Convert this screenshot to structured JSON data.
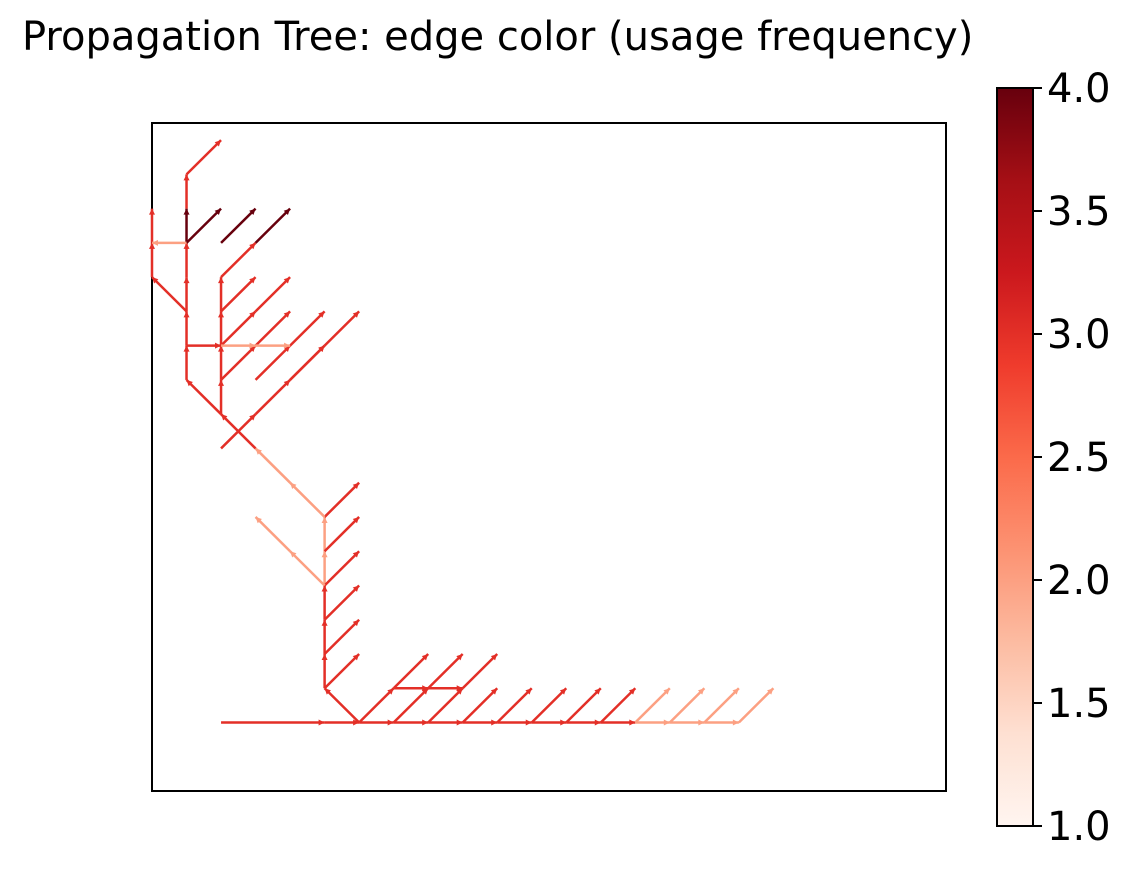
{
  "chart_data": {
    "type": "network",
    "title": "Propagation Tree: edge color (usage frequency)",
    "xlabel": "",
    "ylabel": "",
    "colormap": "Reds",
    "colorbar": {
      "min": 1.0,
      "max": 4.0,
      "ticks": [
        1.0,
        1.5,
        2.0,
        2.5,
        3.0,
        3.5,
        4.0
      ],
      "tick_labels": [
        "1.0",
        "1.5",
        "2.0",
        "2.5",
        "3.0",
        "3.5",
        "4.0"
      ],
      "placement": "right"
    },
    "axes": {
      "xticks": false,
      "yticks": false,
      "grid": false,
      "xlim": [
        -1,
        22
      ],
      "ylim": [
        -2,
        17.5
      ]
    },
    "edges": [
      [
        1,
        0,
        4,
        0,
        3
      ],
      [
        4,
        0,
        5,
        0,
        3
      ],
      [
        5,
        0,
        6,
        0,
        3
      ],
      [
        6,
        0,
        7,
        0,
        3
      ],
      [
        7,
        0,
        8,
        0,
        3
      ],
      [
        8,
        0,
        9,
        0,
        3
      ],
      [
        9,
        0,
        10,
        0,
        3
      ],
      [
        10,
        0,
        11,
        0,
        3
      ],
      [
        11,
        0,
        12,
        0,
        3
      ],
      [
        12,
        0,
        13,
        0,
        3
      ],
      [
        13,
        0,
        14,
        0,
        2
      ],
      [
        14,
        0,
        15,
        0,
        2
      ],
      [
        15,
        0,
        16,
        0,
        2
      ],
      [
        5,
        0,
        6,
        1,
        3
      ],
      [
        6,
        0,
        7,
        1,
        3
      ],
      [
        7,
        0,
        8,
        1,
        3
      ],
      [
        8,
        0,
        9,
        1,
        3
      ],
      [
        9,
        0,
        10,
        1,
        3
      ],
      [
        10,
        0,
        11,
        1,
        3
      ],
      [
        11,
        0,
        12,
        1,
        3
      ],
      [
        12,
        0,
        13,
        1,
        3
      ],
      [
        13,
        0,
        14,
        1,
        2
      ],
      [
        14,
        0,
        15,
        1,
        2
      ],
      [
        15,
        0,
        16,
        1,
        2
      ],
      [
        16,
        0,
        17,
        1,
        2
      ],
      [
        6,
        1,
        7,
        1,
        3
      ],
      [
        7,
        1,
        8,
        1,
        3
      ],
      [
        6,
        1,
        7,
        2,
        3
      ],
      [
        7,
        1,
        8,
        2,
        3
      ],
      [
        8,
        1,
        9,
        2,
        3
      ],
      [
        5,
        0,
        4,
        1,
        3
      ],
      [
        4,
        1,
        4,
        2,
        3
      ],
      [
        4,
        2,
        4,
        3,
        3
      ],
      [
        4,
        3,
        4,
        4,
        3
      ],
      [
        4,
        4,
        4,
        5,
        2
      ],
      [
        4,
        5,
        4,
        6,
        2
      ],
      [
        4,
        1,
        5,
        2,
        3
      ],
      [
        4,
        2,
        5,
        3,
        3
      ],
      [
        4,
        3,
        5,
        4,
        3
      ],
      [
        4,
        4,
        5,
        5,
        3
      ],
      [
        4,
        5,
        5,
        6,
        3
      ],
      [
        4,
        6,
        5,
        7,
        3
      ],
      [
        4,
        4,
        3,
        5,
        2
      ],
      [
        3,
        5,
        2,
        6,
        2
      ],
      [
        4,
        6,
        3,
        7,
        2
      ],
      [
        3,
        7,
        2,
        8,
        2
      ],
      [
        2,
        8,
        1,
        9,
        3
      ],
      [
        1,
        9,
        0,
        10,
        3
      ],
      [
        1,
        8,
        2,
        9,
        3
      ],
      [
        2,
        9,
        3,
        10,
        3
      ],
      [
        3,
        10,
        4,
        11,
        3
      ],
      [
        4,
        11,
        5,
        12,
        3
      ],
      [
        0,
        10,
        0,
        11,
        3
      ],
      [
        0,
        11,
        0,
        12,
        3
      ],
      [
        0,
        12,
        -1,
        13,
        3
      ],
      [
        0,
        12,
        0,
        13,
        3
      ],
      [
        0,
        13,
        0,
        14,
        3
      ],
      [
        -1,
        13,
        -1,
        14,
        3
      ],
      [
        -1,
        14,
        -1,
        15,
        3
      ],
      [
        0,
        14,
        1,
        15,
        4
      ],
      [
        0,
        14,
        0,
        15,
        4
      ],
      [
        0,
        15,
        0,
        16,
        3
      ],
      [
        0,
        16,
        1,
        17,
        3
      ],
      [
        1,
        14,
        2,
        15,
        4
      ],
      [
        2,
        14,
        3,
        15,
        4
      ],
      [
        1,
        13,
        2,
        14,
        3
      ],
      [
        1,
        12,
        2,
        13,
        3
      ],
      [
        2,
        12,
        3,
        13,
        3
      ],
      [
        1,
        11,
        2,
        12,
        3
      ],
      [
        2,
        11,
        3,
        12,
        3
      ],
      [
        3,
        11,
        4,
        12,
        3
      ],
      [
        1,
        10,
        2,
        11,
        3
      ],
      [
        2,
        10,
        3,
        11,
        3
      ],
      [
        3,
        10,
        4,
        11,
        3
      ],
      [
        1,
        9,
        1,
        10,
        3
      ],
      [
        1,
        10,
        1,
        11,
        3
      ],
      [
        1,
        11,
        1,
        12,
        3
      ],
      [
        1,
        12,
        1,
        13,
        3
      ],
      [
        0,
        11,
        1,
        11,
        3
      ],
      [
        1,
        11,
        2,
        11,
        2
      ],
      [
        2,
        11,
        3,
        11,
        2
      ],
      [
        0,
        14,
        -1,
        14,
        2
      ]
    ]
  }
}
